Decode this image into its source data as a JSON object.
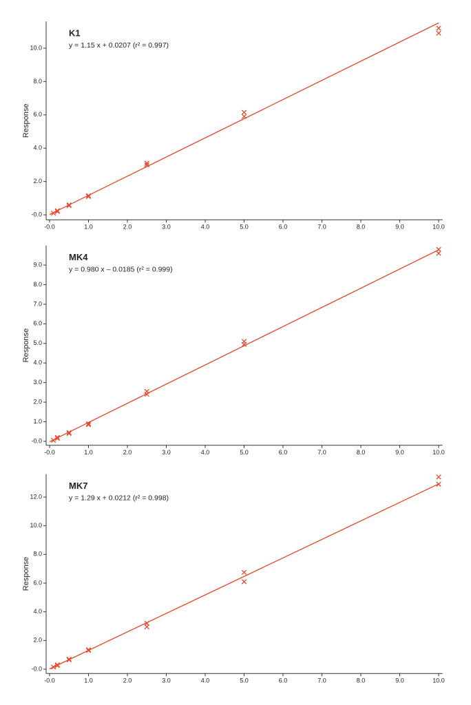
{
  "chart_data": [
    {
      "type": "scatter",
      "title": "K1",
      "subtitle": "y = 1.15 x + 0.0207 (r² = 0.997)",
      "ylabel": "Response",
      "xlim": [
        -0.1,
        10.1
      ],
      "ylim": [
        -0.3,
        11.6
      ],
      "xticks": [
        {
          "value": 0,
          "label": "-0.0"
        },
        {
          "value": 1,
          "label": "1.0"
        },
        {
          "value": 2,
          "label": "2.0"
        },
        {
          "value": 3,
          "label": "3.0"
        },
        {
          "value": 4,
          "label": "4.0"
        },
        {
          "value": 5,
          "label": "5.0"
        },
        {
          "value": 6,
          "label": "6.0"
        },
        {
          "value": 7,
          "label": "7.0"
        },
        {
          "value": 8,
          "label": "8.0"
        },
        {
          "value": 9,
          "label": "9.0"
        },
        {
          "value": 10,
          "label": "10.0"
        }
      ],
      "yticks": [
        {
          "value": 0,
          "label": "-0.0"
        },
        {
          "value": 2,
          "label": "2.0"
        },
        {
          "value": 4,
          "label": "4.0"
        },
        {
          "value": 6,
          "label": "6.0"
        },
        {
          "value": 8,
          "label": "8.0"
        },
        {
          "value": 10,
          "label": "10.0"
        }
      ],
      "series": [
        {
          "color": "#e8472a",
          "x": [
            0.1,
            0.2,
            0.2,
            0.5,
            0.5,
            1,
            1,
            2.5,
            2.5,
            5,
            5,
            10,
            10
          ],
          "values": [
            0.1,
            0.2,
            0.25,
            0.55,
            0.6,
            1.1,
            1.15,
            3.0,
            3.1,
            5.9,
            6.15,
            10.9,
            11.2
          ]
        }
      ],
      "fit": {
        "color": "#e8472a",
        "x": [
          0,
          10
        ],
        "values": [
          0.0207,
          11.52
        ]
      }
    },
    {
      "type": "scatter",
      "title": "MK4",
      "subtitle": "y = 0.980 x – 0.0185 (r² = 0.999)",
      "ylabel": "Response",
      "xlim": [
        -0.1,
        10.1
      ],
      "ylim": [
        -0.2,
        10.0
      ],
      "xticks": [
        {
          "value": 0,
          "label": "-0.0"
        },
        {
          "value": 1,
          "label": "1.0"
        },
        {
          "value": 2,
          "label": "2.0"
        },
        {
          "value": 3,
          "label": "3.0"
        },
        {
          "value": 4,
          "label": "4.0"
        },
        {
          "value": 5,
          "label": "5.0"
        },
        {
          "value": 6,
          "label": "6.0"
        },
        {
          "value": 7,
          "label": "7.0"
        },
        {
          "value": 8,
          "label": "8.0"
        },
        {
          "value": 9,
          "label": "9.0"
        },
        {
          "value": 10,
          "label": "10.0"
        }
      ],
      "yticks": [
        {
          "value": 0,
          "label": "-0.0"
        },
        {
          "value": 1,
          "label": "1.0"
        },
        {
          "value": 2,
          "label": "2.0"
        },
        {
          "value": 3,
          "label": "3.0"
        },
        {
          "value": 4,
          "label": "4.0"
        },
        {
          "value": 5,
          "label": "5.0"
        },
        {
          "value": 6,
          "label": "6.0"
        },
        {
          "value": 7,
          "label": "7.0"
        },
        {
          "value": 8,
          "label": "8.0"
        },
        {
          "value": 9,
          "label": "9.0"
        }
      ],
      "series": [
        {
          "color": "#e8472a",
          "x": [
            0.1,
            0.2,
            0.2,
            0.5,
            0.5,
            1,
            1,
            2.5,
            2.5,
            5,
            5,
            10,
            10
          ],
          "values": [
            0.05,
            0.15,
            0.2,
            0.4,
            0.45,
            0.85,
            0.9,
            2.4,
            2.55,
            4.95,
            5.1,
            9.6,
            9.8
          ]
        }
      ],
      "fit": {
        "color": "#e8472a",
        "x": [
          0,
          10
        ],
        "values": [
          -0.0185,
          9.78
        ]
      }
    },
    {
      "type": "scatter",
      "title": "MK7",
      "subtitle": "y = 1.29 x + 0.0212 (r² = 0.998)",
      "ylabel": "Response",
      "xlim": [
        -0.1,
        10.1
      ],
      "ylim": [
        -0.3,
        13.6
      ],
      "xticks": [
        {
          "value": 0,
          "label": "-0.0"
        },
        {
          "value": 1,
          "label": "1.0"
        },
        {
          "value": 2,
          "label": "2.0"
        },
        {
          "value": 3,
          "label": "3.0"
        },
        {
          "value": 4,
          "label": "4.0"
        },
        {
          "value": 5,
          "label": "5.0"
        },
        {
          "value": 6,
          "label": "6.0"
        },
        {
          "value": 7,
          "label": "7.0"
        },
        {
          "value": 8,
          "label": "8.0"
        },
        {
          "value": 9,
          "label": "9.0"
        },
        {
          "value": 10,
          "label": "10.0"
        }
      ],
      "yticks": [
        {
          "value": 0,
          "label": "-0.0"
        },
        {
          "value": 2,
          "label": "2.0"
        },
        {
          "value": 4,
          "label": "4.0"
        },
        {
          "value": 6,
          "label": "6.0"
        },
        {
          "value": 8,
          "label": "8.0"
        },
        {
          "value": 10,
          "label": "10.0"
        },
        {
          "value": 12,
          "label": "12.0"
        }
      ],
      "series": [
        {
          "color": "#e8472a",
          "x": [
            0.1,
            0.2,
            0.2,
            0.5,
            0.5,
            1,
            1,
            2.5,
            2.5,
            5,
            5,
            10,
            10
          ],
          "values": [
            0.15,
            0.25,
            0.3,
            0.65,
            0.7,
            1.3,
            1.35,
            2.95,
            3.2,
            6.1,
            6.75,
            12.9,
            13.4
          ]
        }
      ],
      "fit": {
        "color": "#e8472a",
        "x": [
          0,
          10
        ],
        "values": [
          0.0212,
          12.92
        ]
      }
    }
  ]
}
